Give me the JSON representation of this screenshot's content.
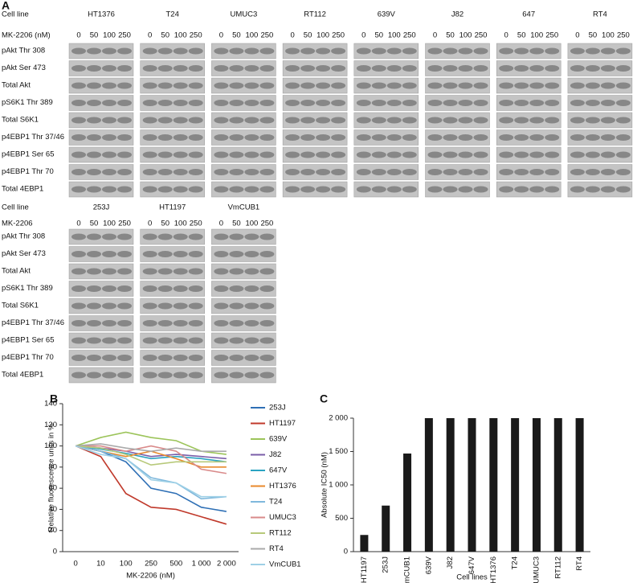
{
  "panel_a": {
    "label": "A",
    "row_header": "Cell line",
    "top": {
      "dose_header": "MK-2206 (nM)",
      "cell_lines": [
        "HT1376",
        "T24",
        "UMUC3",
        "RT112",
        "639V",
        "J82",
        "647",
        "RT4"
      ]
    },
    "bottom": {
      "dose_header": "MK-2206",
      "cell_lines": [
        "253J",
        "HT1197",
        "VmCUB1"
      ]
    },
    "doses": [
      "0",
      "50",
      "100",
      "250"
    ],
    "rows": [
      "pAkt Thr 308",
      "pAkt Ser 473",
      "Total Akt",
      "pS6K1 Thr 389",
      "Total S6K1",
      "p4EBP1 Thr 37/46",
      "p4EBP1 Ser 65",
      "p4EBP1 Thr 70",
      "Total 4EBP1"
    ]
  },
  "chart_data": [
    {
      "type": "line",
      "label": "B",
      "x_label": "MK-2206 (nM)",
      "y_label": "Relative fluorescence units in %",
      "categories": [
        "0",
        "10",
        "100",
        "250",
        "500",
        "1 000",
        "2 000"
      ],
      "ylim": [
        0,
        140
      ],
      "yticks": [
        0,
        20,
        40,
        60,
        80,
        100,
        120,
        140
      ],
      "legend": "right",
      "series": [
        {
          "name": "253J",
          "color": "#2e6fb5",
          "values": [
            100,
            95,
            85,
            60,
            55,
            42,
            38
          ]
        },
        {
          "name": "HT1197",
          "color": "#c0392b",
          "values": [
            100,
            90,
            55,
            42,
            40,
            33,
            26
          ]
        },
        {
          "name": "639V",
          "color": "#9cc45a",
          "values": [
            100,
            108,
            113,
            108,
            105,
            95,
            92
          ]
        },
        {
          "name": "J82",
          "color": "#7a5ea8",
          "values": [
            100,
            98,
            95,
            90,
            92,
            90,
            88
          ]
        },
        {
          "name": "647V",
          "color": "#2aa3c2",
          "values": [
            100,
            97,
            93,
            88,
            90,
            88,
            85
          ]
        },
        {
          "name": "HT1376",
          "color": "#e8892b",
          "values": [
            100,
            95,
            90,
            95,
            88,
            80,
            80
          ]
        },
        {
          "name": "T24",
          "color": "#7fb8dc",
          "values": [
            100,
            95,
            88,
            70,
            65,
            50,
            52
          ]
        },
        {
          "name": "UMUC3",
          "color": "#d98a8a",
          "values": [
            100,
            100,
            95,
            100,
            95,
            78,
            74
          ]
        },
        {
          "name": "RT112",
          "color": "#b7c97a",
          "values": [
            100,
            98,
            92,
            82,
            85,
            85,
            85
          ]
        },
        {
          "name": "RT4",
          "color": "#aaaaaa",
          "values": [
            100,
            102,
            98,
            95,
            98,
            95,
            95
          ]
        },
        {
          "name": "VmCUB1",
          "color": "#9ed0e6",
          "values": [
            100,
            92,
            88,
            68,
            65,
            52,
            52
          ]
        }
      ]
    },
    {
      "type": "bar",
      "label": "C",
      "x_label": "Cell lines",
      "y_label": "Absolute IC50 (nM)",
      "color": "#1a1a1a",
      "categories": [
        "HT1197",
        "253J",
        "VmCUB1",
        "639V",
        "J82",
        "647V",
        "HT1376",
        "T24",
        "UMUC3",
        "RT112",
        "RT4"
      ],
      "values": [
        250,
        690,
        1470,
        2000,
        2000,
        2000,
        2000,
        2000,
        2000,
        2000,
        2000
      ],
      "ylim": [
        0,
        2000
      ],
      "yticks": [
        0,
        500,
        {
          "value": 1000,
          "label": "1 000"
        },
        {
          "value": 1500,
          "label": "1 500"
        },
        {
          "value": 2000,
          "label": "2 000"
        }
      ]
    }
  ]
}
